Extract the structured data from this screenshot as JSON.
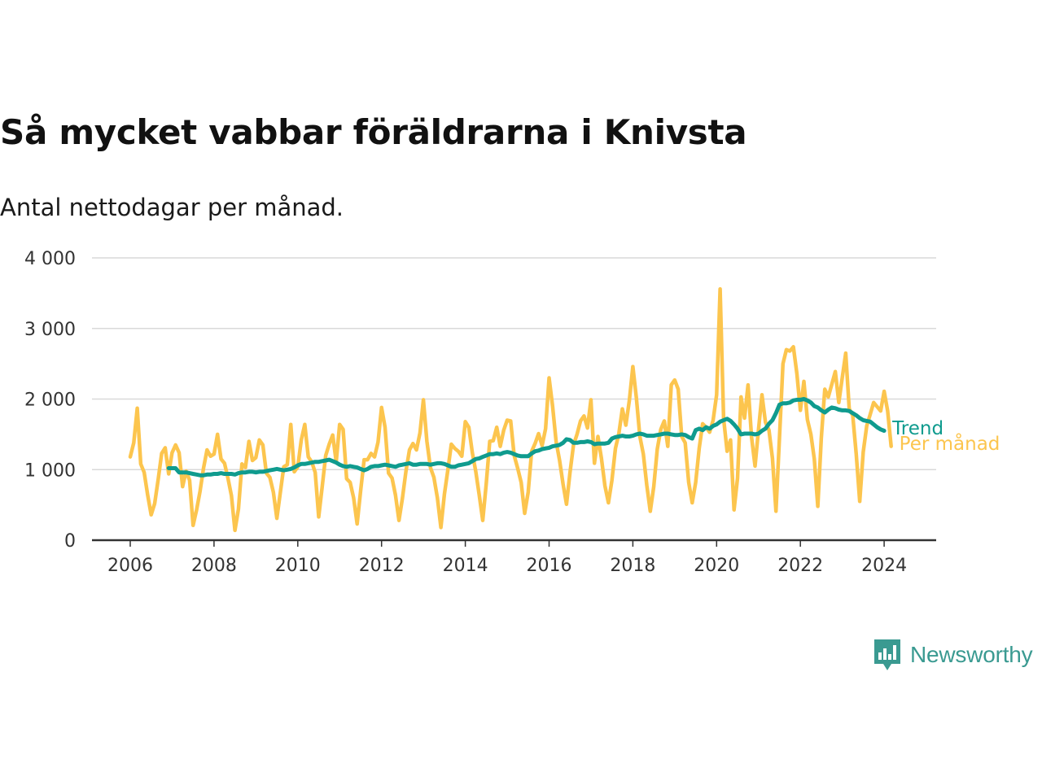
{
  "header": {
    "title": "Så mycket vabbar föräldrarna i Knivsta",
    "subtitle": "Antal nettodagar per månad."
  },
  "brand": {
    "name": "Newsworthy",
    "icon": "newsworthy-logo-icon",
    "color": "#3a9a91"
  },
  "colors": {
    "trend": "#0f9b8e",
    "monthly": "#fcc54e",
    "grid": "#d9d9d9",
    "axis": "#333333"
  },
  "chart_data": {
    "type": "line",
    "title": "Så mycket vabbar föräldrarna i Knivsta",
    "subtitle": "Antal nettodagar per månad.",
    "xlabel": "",
    "ylabel": "",
    "xlim": [
      2005.5,
      2025.3
    ],
    "ylim": [
      0,
      4000
    ],
    "x_ticks": [
      2006,
      2008,
      2010,
      2012,
      2014,
      2016,
      2018,
      2020,
      2022,
      2024
    ],
    "y_ticks": [
      0,
      1000,
      2000,
      3000,
      4000
    ],
    "y_tick_labels": [
      "0",
      "1 000",
      "2 000",
      "3 000",
      "4 000"
    ],
    "grid": true,
    "legend": "end-of-line labels, right",
    "series": [
      {
        "name": "Per månad",
        "color": "#fcc54e",
        "x_start": 2006.0,
        "x_step": 0.0833333,
        "values": [
          1180,
          1380,
          1870,
          1080,
          960,
          640,
          360,
          520,
          860,
          1230,
          1310,
          940,
          1240,
          1350,
          1240,
          760,
          980,
          850,
          210,
          430,
          690,
          1020,
          1280,
          1190,
          1220,
          1500,
          1150,
          1090,
          880,
          630,
          140,
          440,
          1080,
          1030,
          1400,
          1130,
          1170,
          1420,
          1350,
          950,
          890,
          680,
          310,
          680,
          1040,
          1070,
          1640,
          970,
          1040,
          1420,
          1640,
          1180,
          1110,
          960,
          330,
          760,
          1200,
          1360,
          1490,
          1110,
          1640,
          1570,
          870,
          820,
          600,
          230,
          700,
          1140,
          1140,
          1230,
          1180,
          1390,
          1880,
          1600,
          950,
          880,
          640,
          280,
          600,
          980,
          1280,
          1370,
          1280,
          1520,
          1990,
          1400,
          1030,
          890,
          600,
          180,
          650,
          1000,
          1360,
          1300,
          1260,
          1190,
          1680,
          1600,
          1240,
          970,
          640,
          280,
          800,
          1400,
          1410,
          1600,
          1330,
          1560,
          1700,
          1690,
          1200,
          1020,
          820,
          380,
          680,
          1260,
          1370,
          1510,
          1340,
          1580,
          2300,
          1900,
          1400,
          1130,
          800,
          510,
          960,
          1350,
          1500,
          1690,
          1760,
          1590,
          1990,
          1090,
          1470,
          1160,
          770,
          530,
          850,
          1300,
          1510,
          1860,
          1630,
          1980,
          2460,
          2020,
          1470,
          1220,
          780,
          410,
          760,
          1290,
          1570,
          1690,
          1330,
          2200,
          2270,
          2140,
          1470,
          1380,
          820,
          530,
          820,
          1300,
          1650,
          1600,
          1530,
          1700,
          2060,
          3560,
          1720,
          1260,
          1420,
          430,
          880,
          2030,
          1730,
          2200,
          1460,
          1050,
          1560,
          2060,
          1670,
          1560,
          1160,
          410,
          1450,
          2500,
          2700,
          2680,
          2740,
          2360,
          1840,
          2250,
          1710,
          1500,
          1150,
          480,
          1450,
          2140,
          2030,
          2210,
          2390,
          1950,
          2300,
          2650,
          1860,
          1770,
          1220,
          550,
          1250,
          1620,
          1780,
          1950,
          1890,
          1830,
          2110,
          1830,
          1330
        ]
      },
      {
        "name": "Trend",
        "color": "#0f9b8e",
        "x_start": 2006.9167,
        "x_step": 0.0833333,
        "values": [
          1020,
          1020,
          1020,
          960,
          960,
          960,
          950,
          940,
          930,
          920,
          920,
          930,
          930,
          940,
          940,
          950,
          940,
          940,
          940,
          930,
          950,
          960,
          960,
          970,
          970,
          960,
          970,
          970,
          980,
          990,
          1000,
          1010,
          1000,
          990,
          1000,
          1010,
          1030,
          1060,
          1080,
          1080,
          1090,
          1100,
          1110,
          1110,
          1120,
          1130,
          1140,
          1120,
          1100,
          1070,
          1050,
          1040,
          1050,
          1040,
          1030,
          1010,
          990,
          1010,
          1040,
          1050,
          1050,
          1060,
          1070,
          1060,
          1050,
          1040,
          1060,
          1070,
          1080,
          1090,
          1070,
          1070,
          1080,
          1080,
          1080,
          1070,
          1080,
          1090,
          1090,
          1080,
          1060,
          1040,
          1040,
          1060,
          1070,
          1080,
          1090,
          1120,
          1150,
          1160,
          1180,
          1200,
          1220,
          1220,
          1230,
          1220,
          1240,
          1250,
          1240,
          1220,
          1200,
          1190,
          1190,
          1190,
          1230,
          1260,
          1270,
          1290,
          1300,
          1310,
          1330,
          1340,
          1350,
          1380,
          1430,
          1420,
          1380,
          1380,
          1390,
          1390,
          1400,
          1390,
          1360,
          1370,
          1370,
          1370,
          1380,
          1440,
          1460,
          1470,
          1480,
          1470,
          1470,
          1480,
          1500,
          1510,
          1500,
          1480,
          1480,
          1480,
          1490,
          1500,
          1510,
          1510,
          1500,
          1490,
          1490,
          1500,
          1490,
          1460,
          1440,
          1560,
          1580,
          1560,
          1600,
          1580,
          1620,
          1640,
          1680,
          1700,
          1720,
          1690,
          1640,
          1580,
          1500,
          1510,
          1510,
          1510,
          1500,
          1510,
          1550,
          1580,
          1650,
          1700,
          1800,
          1920,
          1940,
          1940,
          1950,
          1980,
          1990,
          1990,
          2000,
          1980,
          1950,
          1900,
          1880,
          1840,
          1810,
          1850,
          1880,
          1870,
          1850,
          1840,
          1840,
          1830,
          1800,
          1770,
          1730,
          1700,
          1690,
          1680,
          1640,
          1600,
          1570,
          1550
        ]
      }
    ]
  }
}
